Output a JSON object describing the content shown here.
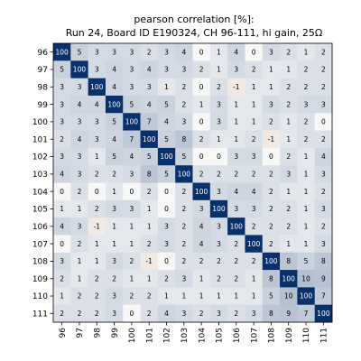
{
  "chart_data": {
    "type": "heatmap",
    "title": "pearson correlation [%]:",
    "subtitle": "Run 24, Board ID E190324, CH 96-111, hi gain, 25Ω",
    "x_categories": [
      "96",
      "97",
      "98",
      "99",
      "100",
      "101",
      "102",
      "103",
      "104",
      "105",
      "106",
      "107",
      "108",
      "109",
      "110",
      "111"
    ],
    "y_categories": [
      "96",
      "97",
      "98",
      "99",
      "100",
      "101",
      "102",
      "103",
      "104",
      "105",
      "106",
      "107",
      "108",
      "109",
      "110",
      "111"
    ],
    "value_range": [
      -100,
      100
    ],
    "colors": {
      "negative": "#b4480c",
      "zero": "#f7f7f7",
      "positive": "#08306b",
      "label_dark": "#000000",
      "label_light": "#ffffff"
    },
    "values": [
      [
        100,
        5,
        3,
        3,
        3,
        2,
        3,
        4,
        0,
        1,
        4,
        0,
        3,
        2,
        1,
        2
      ],
      [
        5,
        100,
        3,
        4,
        3,
        4,
        3,
        3,
        2,
        1,
        3,
        2,
        1,
        1,
        2,
        2
      ],
      [
        3,
        3,
        100,
        4,
        3,
        3,
        1,
        2,
        0,
        2,
        -1,
        1,
        1,
        2,
        2,
        2
      ],
      [
        3,
        4,
        4,
        100,
        5,
        4,
        5,
        2,
        1,
        3,
        1,
        1,
        3,
        2,
        3,
        3
      ],
      [
        3,
        3,
        3,
        5,
        100,
        7,
        4,
        3,
        0,
        3,
        1,
        1,
        2,
        1,
        2,
        0
      ],
      [
        2,
        4,
        3,
        4,
        7,
        100,
        5,
        8,
        2,
        1,
        1,
        2,
        -1,
        1,
        2,
        2
      ],
      [
        3,
        3,
        1,
        5,
        4,
        5,
        100,
        5,
        0,
        0,
        3,
        3,
        0,
        2,
        1,
        4
      ],
      [
        4,
        3,
        2,
        2,
        3,
        8,
        5,
        100,
        2,
        2,
        2,
        2,
        2,
        3,
        1,
        3
      ],
      [
        0,
        2,
        0,
        1,
        0,
        2,
        0,
        2,
        100,
        3,
        4,
        4,
        2,
        1,
        1,
        2
      ],
      [
        1,
        1,
        2,
        3,
        3,
        1,
        0,
        2,
        3,
        100,
        3,
        3,
        2,
        2,
        1,
        3
      ],
      [
        4,
        3,
        -1,
        1,
        1,
        1,
        3,
        2,
        4,
        3,
        100,
        2,
        2,
        2,
        1,
        2
      ],
      [
        0,
        2,
        1,
        1,
        1,
        2,
        3,
        2,
        4,
        3,
        2,
        100,
        2,
        1,
        1,
        3
      ],
      [
        3,
        1,
        1,
        3,
        2,
        -1,
        0,
        2,
        2,
        2,
        2,
        2,
        100,
        8,
        5,
        8
      ],
      [
        2,
        1,
        2,
        2,
        1,
        1,
        2,
        3,
        1,
        2,
        2,
        1,
        8,
        100,
        10,
        9
      ],
      [
        1,
        2,
        2,
        3,
        2,
        2,
        1,
        1,
        1,
        1,
        1,
        1,
        5,
        10,
        100,
        7
      ],
      [
        2,
        2,
        2,
        3,
        0,
        2,
        4,
        3,
        2,
        3,
        2,
        3,
        8,
        9,
        7,
        100
      ]
    ]
  }
}
